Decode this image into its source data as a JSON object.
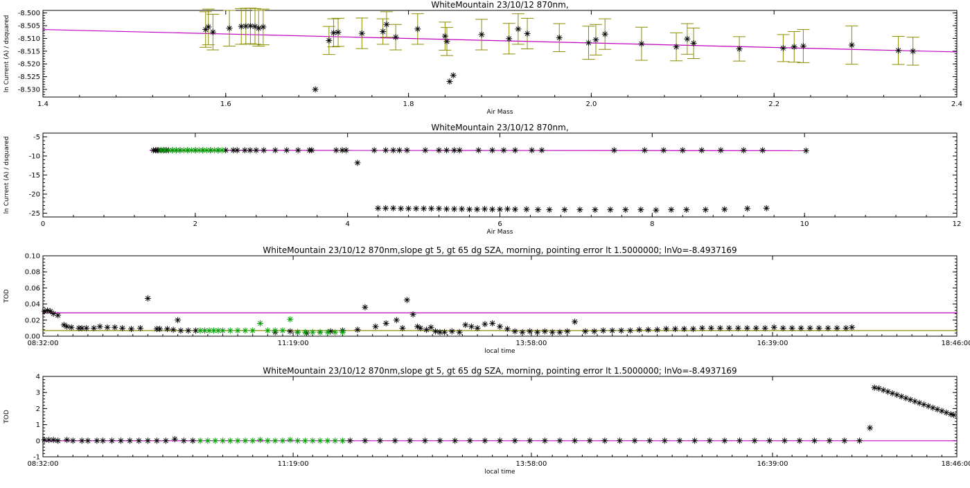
{
  "colors": {
    "fit": "#c000c0",
    "error": "#8c8c00",
    "black": "#000000",
    "green": "#00a000",
    "olive": "#8c8c00"
  },
  "chart_data": [
    {
      "type": "scatter",
      "title": "WhiteMountain 23/10/12 870nm,",
      "xlabel": "Air Mass",
      "ylabel": "ln Current (A) / dsquared",
      "xlim": [
        1.4,
        2.4
      ],
      "ylim": [
        -8.533,
        -8.499
      ],
      "xticks": [
        "1.4",
        "1.6",
        "1.8",
        "2.0",
        "2.2",
        "2.4"
      ],
      "yticks": [
        "-8.500",
        "-8.505",
        "-8.510",
        "-8.515",
        "-8.520",
        "-8.525",
        "-8.530"
      ],
      "fit_line": {
        "x": [
          1.4,
          2.4
        ],
        "y": [
          -8.5065,
          -8.5153
        ]
      },
      "series": [
        {
          "marker": "asterisk",
          "color": "black",
          "error_color": "olive",
          "x": [
            1.578,
            1.581,
            1.586,
            1.604,
            1.617,
            1.622,
            1.627,
            1.632,
            1.636,
            1.641,
            1.698,
            1.713,
            1.718,
            1.723,
            1.749,
            1.772,
            1.776,
            1.786,
            1.81,
            1.84,
            1.845,
            1.849,
            1.842,
            1.88,
            1.91,
            1.92,
            1.93,
            1.965,
            1.997,
            2.005,
            2.015,
            2.055,
            2.093,
            2.105,
            2.112,
            2.162,
            2.21,
            2.222,
            2.232,
            2.285,
            2.336,
            2.352
          ],
          "y": [
            -8.5065,
            -8.5055,
            -8.5075,
            -8.506,
            -8.5053,
            -8.5052,
            -8.5051,
            -8.5053,
            -8.506,
            -8.5055,
            -8.53,
            -8.5108,
            -8.5078,
            -8.5076,
            -8.508,
            -8.5073,
            -8.5045,
            -8.5095,
            -8.5063,
            -8.5091,
            -8.5269,
            -8.5245,
            -8.5112,
            -8.5085,
            -8.5101,
            -8.5063,
            -8.5081,
            -8.5097,
            -8.5117,
            -8.5105,
            -8.5083,
            -8.5121,
            -8.5133,
            -8.5102,
            -8.5119,
            -8.5141,
            -8.5138,
            -8.5133,
            -8.513,
            -8.5126,
            -8.5147,
            -8.515
          ],
          "err": [
            0.007,
            0.007,
            0.007,
            0.007,
            0.007,
            0.007,
            0.007,
            0.007,
            0.007,
            0.007,
            0,
            0.0055,
            0.0055,
            0.0055,
            0.006,
            0.005,
            0.005,
            0.005,
            0.006,
            0.0055,
            0,
            0,
            0.0055,
            0.006,
            0.006,
            0.006,
            0.006,
            0.0055,
            0.0065,
            0.006,
            0.006,
            0.0065,
            0.0055,
            0.006,
            0.006,
            0.0048,
            0.0053,
            0.006,
            0.0065,
            0.0075,
            0.0055,
            0.0055
          ]
        }
      ]
    },
    {
      "type": "scatter",
      "title": "WhiteMountain 23/10/12 870nm,",
      "xlabel": "Air Mass",
      "ylabel": "ln Current (A) / dsquared",
      "xlim": [
        0,
        12
      ],
      "ylim": [
        -26,
        -4
      ],
      "xticks": [
        "0",
        "2",
        "4",
        "6",
        "8",
        "10",
        "12"
      ],
      "yticks": [
        "-5",
        "-10",
        "-15",
        "-20",
        "-25"
      ],
      "fit_line": {
        "x": [
          1.4,
          10.0
        ],
        "y": [
          -8.5,
          -8.6
        ]
      },
      "series": [
        {
          "marker": "asterisk",
          "color": "black",
          "x": [
            1.45,
            1.48,
            1.5,
            1.52,
            1.55,
            1.58,
            1.62,
            1.65,
            1.7,
            1.75,
            1.8,
            1.9,
            2.0,
            2.1,
            2.2,
            2.3,
            2.4,
            2.5,
            2.55,
            2.65,
            2.72,
            2.8,
            2.9,
            3.05,
            3.2,
            3.35,
            3.5,
            3.53,
            3.85,
            3.93,
            3.98,
            4.13,
            4.35,
            4.5,
            4.6,
            4.68,
            4.78,
            5.02,
            5.2,
            5.3,
            5.4,
            5.47,
            5.72,
            5.9,
            6.05,
            6.2,
            6.42,
            6.55,
            7.5,
            7.9,
            8.15,
            8.4,
            8.65,
            8.9,
            9.2,
            9.45,
            10.02
          ],
          "y": [
            -8.5,
            -8.5,
            -8.5,
            -8.5,
            -8.5,
            -8.5,
            -8.5,
            -8.5,
            -8.5,
            -8.5,
            -8.5,
            -8.5,
            -8.5,
            -8.5,
            -8.5,
            -8.5,
            -8.5,
            -8.5,
            -8.5,
            -8.5,
            -8.5,
            -8.5,
            -8.5,
            -8.5,
            -8.5,
            -8.5,
            -8.5,
            -8.5,
            -8.5,
            -8.5,
            -8.5,
            -11.8,
            -8.5,
            -8.5,
            -8.5,
            -8.5,
            -8.5,
            -8.5,
            -8.5,
            -8.5,
            -8.5,
            -8.5,
            -8.5,
            -8.5,
            -8.5,
            -8.5,
            -8.5,
            -8.5,
            -8.5,
            -8.5,
            -8.5,
            -8.5,
            -8.5,
            -8.5,
            -8.5,
            -8.5,
            -8.6
          ]
        },
        {
          "marker": "asterisk",
          "color": "black",
          "x": [
            4.4,
            4.5,
            4.6,
            4.7,
            4.8,
            4.9,
            5.0,
            5.1,
            5.2,
            5.3,
            5.4,
            5.5,
            5.6,
            5.7,
            5.8,
            5.9,
            6.0,
            6.1,
            6.2,
            6.35,
            6.5,
            6.65,
            6.85,
            7.05,
            7.25,
            7.45,
            7.65,
            7.85,
            8.05,
            8.25,
            8.45,
            8.7,
            8.95,
            9.25,
            9.5
          ],
          "y": [
            -23.7,
            -23.7,
            -23.7,
            -23.8,
            -23.8,
            -23.8,
            -23.8,
            -23.8,
            -23.8,
            -23.9,
            -23.9,
            -23.9,
            -24.0,
            -24.0,
            -23.9,
            -24.0,
            -24.0,
            -23.9,
            -24.0,
            -24.0,
            -24.1,
            -24.1,
            -24.1,
            -24.1,
            -24.1,
            -24.1,
            -24.1,
            -24.1,
            -24.2,
            -24.1,
            -24.1,
            -24.1,
            -24.0,
            -23.8,
            -23.7
          ]
        },
        {
          "marker": "asterisk",
          "color": "green",
          "x": [
            1.55,
            1.6,
            1.65,
            1.7,
            1.75,
            1.8,
            1.85,
            1.9,
            1.95,
            2.0,
            2.05,
            2.1,
            2.15,
            2.2,
            2.25,
            2.3,
            2.35
          ],
          "y": [
            -8.5,
            -8.5,
            -8.5,
            -8.5,
            -8.5,
            -8.5,
            -8.5,
            -8.5,
            -8.5,
            -8.5,
            -8.5,
            -8.5,
            -8.5,
            -8.5,
            -8.5,
            -8.5,
            -8.5
          ]
        }
      ]
    },
    {
      "type": "scatter",
      "title": "WhiteMountain 23/10/12 870nm,slope gt 5, gt 65 dg SZA, morning, pointing error lt 1.5000000; lnVo=-8.4937169",
      "xlabel": "local time",
      "ylabel": "TOD",
      "xlim": [
        0,
        610
      ],
      "ylim": [
        0,
        0.1
      ],
      "xticks": [
        "08:32:00",
        "11:19:00",
        "13:58:00",
        "16:39:00",
        "18:46:00"
      ],
      "xtick_pos": [
        0,
        167,
        326,
        487,
        614
      ],
      "yticks": [
        "0.00",
        "0.02",
        "0.04",
        "0.06",
        "0.08",
        "0.10"
      ],
      "ref_lines": [
        {
          "y": 0.029,
          "color": "fit"
        },
        {
          "y": 0.007,
          "color": "olive"
        }
      ],
      "series": [
        {
          "marker": "asterisk",
          "color": "black",
          "x": [
            1,
            3,
            5,
            7,
            10,
            14,
            16,
            19,
            24,
            26,
            29,
            34,
            38,
            43,
            48,
            53,
            59,
            65,
            70,
            76,
            78,
            83,
            87,
            90,
            92,
            97,
            102,
            155,
            165,
            170,
            176,
            185,
            192,
            200,
            210,
            215,
            222,
            229,
            236,
            240,
            243,
            247,
            250,
            252,
            256,
            259,
            262,
            265,
            268,
            273,
            278,
            282,
            286,
            290,
            295,
            300,
            305,
            310,
            315,
            320,
            325,
            330,
            335,
            340,
            345,
            350,
            355,
            362,
            368,
            374,
            380,
            386,
            392,
            398,
            404,
            410,
            416,
            422,
            428,
            434,
            440,
            446,
            452,
            458,
            464,
            470,
            476,
            482,
            488,
            494,
            500,
            506,
            512,
            518,
            524,
            530,
            536,
            540
          ],
          "y": [
            0.031,
            0.032,
            0.031,
            0.028,
            0.026,
            0.014,
            0.012,
            0.011,
            0.01,
            0.01,
            0.01,
            0.01,
            0.012,
            0.011,
            0.011,
            0.01,
            0.009,
            0.01,
            0.047,
            0.009,
            0.009,
            0.009,
            0.008,
            0.02,
            0.007,
            0.007,
            0.007,
            0.005,
            0.006,
            0.005,
            0.004,
            0.005,
            0.006,
            0.007,
            0.008,
            0.036,
            0.012,
            0.016,
            0.02,
            0.01,
            0.045,
            0.027,
            0.012,
            0.01,
            0.008,
            0.011,
            0.006,
            0.005,
            0.005,
            0.006,
            0.005,
            0.014,
            0.012,
            0.01,
            0.015,
            0.016,
            0.012,
            0.009,
            0.006,
            0.005,
            0.006,
            0.005,
            0.006,
            0.005,
            0.005,
            0.006,
            0.018,
            0.006,
            0.006,
            0.007,
            0.007,
            0.007,
            0.007,
            0.008,
            0.008,
            0.008,
            0.009,
            0.009,
            0.009,
            0.009,
            0.01,
            0.01,
            0.01,
            0.01,
            0.01,
            0.01,
            0.01,
            0.01,
            0.011,
            0.01,
            0.01,
            0.01,
            0.01,
            0.01,
            0.01,
            0.01,
            0.01,
            0.011
          ]
        },
        {
          "marker": "asterisk",
          "color": "green",
          "x": [
            105,
            108,
            111,
            114,
            117,
            120,
            125,
            130,
            135,
            140,
            145,
            150,
            155,
            160,
            165,
            170,
            175,
            180,
            185,
            190,
            195,
            200
          ],
          "y": [
            0.007,
            0.007,
            0.007,
            0.007,
            0.007,
            0.007,
            0.007,
            0.007,
            0.007,
            0.007,
            0.016,
            0.007,
            0.007,
            0.007,
            0.021,
            0.005,
            0.005,
            0.005,
            0.005,
            0.005,
            0.005,
            0.005
          ]
        }
      ]
    },
    {
      "type": "scatter",
      "title": "WhiteMountain 23/10/12 870nm,slope gt 5, gt 65 dg SZA, morning, pointing error lt 1.5000000; lnVo=-8.4937169",
      "xlabel": "local time",
      "ylabel": "TOD",
      "xlim": [
        0,
        610
      ],
      "ylim": [
        -1,
        4
      ],
      "xticks": [
        "08:32:00",
        "11:19:00",
        "13:58:00",
        "16:39:00",
        "18:46:00"
      ],
      "xtick_pos": [
        0,
        167,
        326,
        487,
        614
      ],
      "yticks": [
        "-1",
        "0",
        "1",
        "2",
        "3",
        "4"
      ],
      "ref_lines": [
        {
          "y": 0.0,
          "color": "fit"
        }
      ],
      "series": [
        {
          "marker": "asterisk",
          "color": "black",
          "x": [
            1,
            4,
            7,
            10,
            16,
            20,
            26,
            30,
            36,
            40,
            46,
            52,
            58,
            64,
            70,
            76,
            82,
            88,
            94,
            100,
            205,
            215,
            225,
            235,
            245,
            255,
            265,
            275,
            285,
            295,
            305,
            315,
            325,
            335,
            345,
            355,
            365,
            375,
            385,
            395,
            405,
            415,
            425,
            435,
            445,
            455,
            465,
            475,
            485,
            495,
            505,
            515,
            525,
            535,
            545
          ],
          "y": [
            0.05,
            0.05,
            0.05,
            0.0,
            0.05,
            0.0,
            0.0,
            0.0,
            0.0,
            0.0,
            0.0,
            0.0,
            0.0,
            0.0,
            0.0,
            0.0,
            0.0,
            0.1,
            0.0,
            0.0,
            0.0,
            0.0,
            0.0,
            0.0,
            0.0,
            0.0,
            0.0,
            0.0,
            0.0,
            0.0,
            0.0,
            0.0,
            0.0,
            0.0,
            0.0,
            0.0,
            0.0,
            0.0,
            0.0,
            0.0,
            0.0,
            0.0,
            0.0,
            0.0,
            0.0,
            0.0,
            0.0,
            0.0,
            0.0,
            0.0,
            0.0,
            0.0,
            0.0,
            0.0,
            0.0
          ]
        },
        {
          "marker": "asterisk",
          "color": "black",
          "x": [
            552,
            555,
            558,
            561,
            564,
            567,
            570,
            573,
            576,
            579,
            582,
            585,
            588,
            591,
            594,
            597,
            600,
            603,
            606,
            608
          ],
          "y": [
            0.8,
            3.3,
            3.25,
            3.15,
            3.05,
            2.95,
            2.85,
            2.75,
            2.65,
            2.55,
            2.45,
            2.35,
            2.25,
            2.15,
            2.05,
            1.95,
            1.85,
            1.75,
            1.65,
            1.6
          ]
        },
        {
          "marker": "asterisk",
          "color": "green",
          "x": [
            105,
            110,
            115,
            120,
            125,
            130,
            135,
            140,
            145,
            150,
            155,
            160,
            165,
            170,
            175,
            180,
            185,
            190,
            195,
            200
          ],
          "y": [
            0.0,
            0.0,
            0.0,
            0.0,
            0.0,
            0.0,
            0.0,
            0.0,
            0.05,
            0.0,
            0.0,
            0.0,
            0.05,
            0.0,
            0.0,
            0.0,
            0.0,
            0.0,
            0.0,
            0.0
          ]
        }
      ]
    }
  ]
}
